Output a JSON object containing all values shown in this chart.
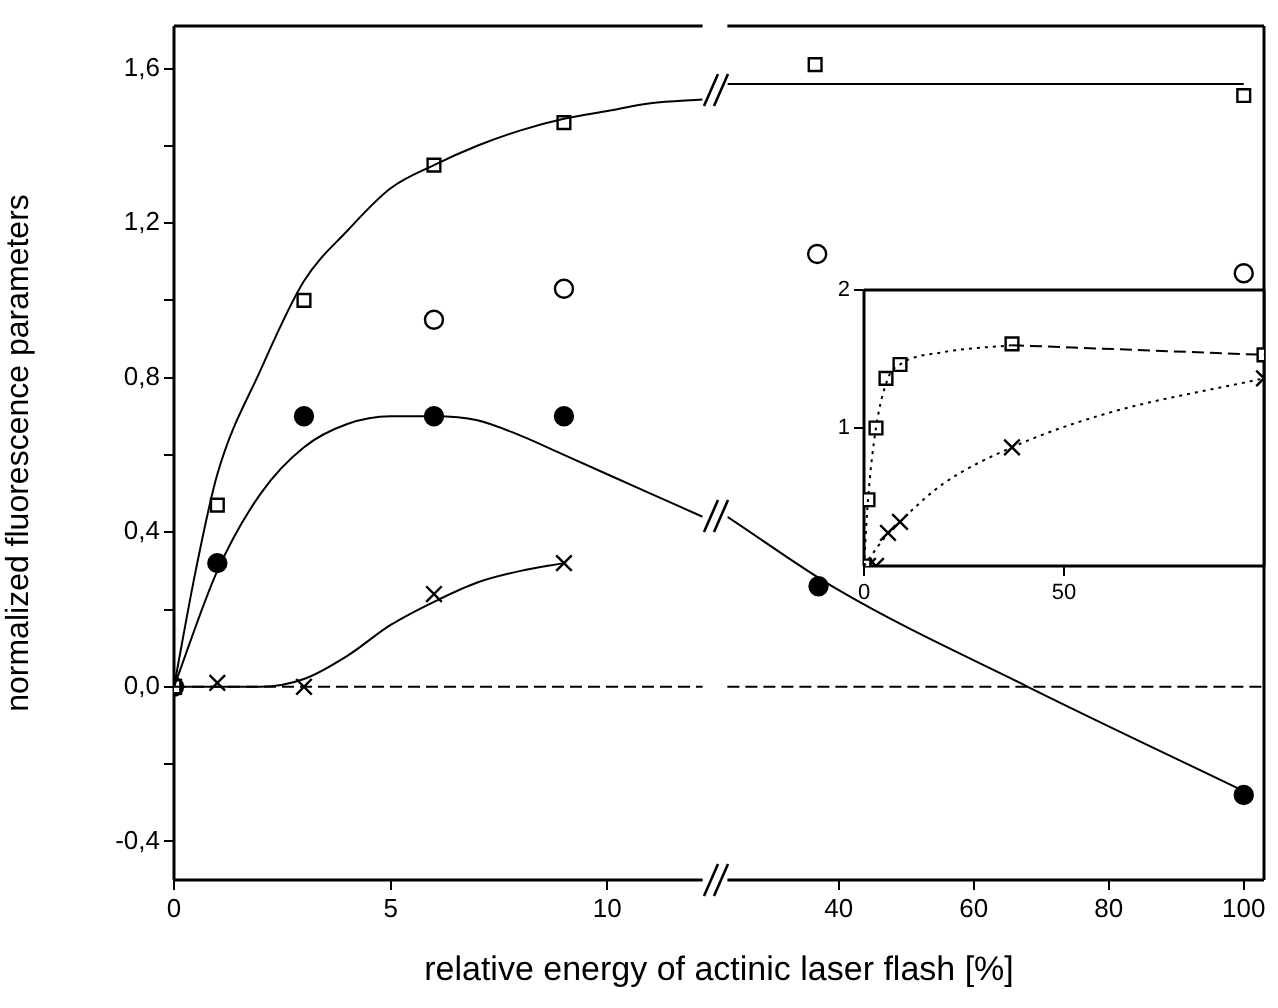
{
  "chart_data": [
    {
      "type": "scatter",
      "xlabel": "relative energy of actinic laser flash [%]",
      "ylabel": "normalized fluorescence parameters",
      "xlim": [
        0,
        12.2
      ],
      "ylim": [
        -0.5,
        1.71
      ],
      "xticks": [
        0,
        5,
        10
      ],
      "yticks": [
        {
          "value": -0.4,
          "label": "-0,4"
        },
        {
          "value": -0.2,
          "label": null
        },
        {
          "value": 0,
          "label": "0,0"
        },
        {
          "value": 0.2,
          "label": null
        },
        {
          "value": 0.4,
          "label": "0,4"
        },
        {
          "value": 0.6,
          "label": null
        },
        {
          "value": 0.8,
          "label": "0,8"
        },
        {
          "value": 1.0,
          "label": null
        },
        {
          "value": 1.2,
          "label": "1,2"
        },
        {
          "value": 1.4,
          "label": null
        },
        {
          "value": 1.6,
          "label": "1,6"
        }
      ],
      "grid": false,
      "ref_lines": [
        {
          "axis": "y",
          "value": 0,
          "line_style": "dashed"
        }
      ],
      "series": [
        {
          "type": "line",
          "color": "#000000",
          "marker": "none",
          "x": [
            0,
            0.5,
            1,
            2,
            3,
            4,
            5,
            6,
            7,
            8,
            9,
            10,
            11,
            12.2
          ],
          "values": [
            0,
            0.3,
            0.55,
            0.82,
            1.05,
            1.18,
            1.29,
            1.35,
            1.4,
            1.44,
            1.47,
            1.49,
            1.51,
            1.52
          ]
        },
        {
          "type": "line",
          "color": "#000000",
          "marker": "none",
          "x": [
            0,
            1,
            2,
            3,
            4,
            5,
            6,
            7,
            8,
            9,
            10,
            11,
            12.2
          ],
          "values": [
            0,
            0.3,
            0.5,
            0.62,
            0.68,
            0.7,
            0.7,
            0.69,
            0.65,
            0.6,
            0.55,
            0.5,
            0.44
          ]
        },
        {
          "type": "line",
          "color": "#000000",
          "marker": "none",
          "x": [
            0,
            1,
            2,
            3,
            4,
            5,
            6,
            7,
            8,
            9
          ],
          "values": [
            0,
            0,
            0,
            0.02,
            0.08,
            0.16,
            0.22,
            0.27,
            0.3,
            0.32
          ]
        },
        {
          "color": "#ffffff",
          "marker": "square",
          "x": [
            0,
            1,
            3,
            6,
            9
          ],
          "values": [
            0,
            0.47,
            1.0,
            1.35,
            1.46
          ]
        },
        {
          "color": "#ffffff",
          "marker": "circle",
          "x": [
            6,
            9
          ],
          "values": [
            0.95,
            1.03
          ]
        },
        {
          "color": "#000000",
          "marker": "circle",
          "x": [
            0,
            1,
            3,
            6,
            9
          ],
          "values": [
            0,
            0.32,
            0.7,
            0.7,
            0.7
          ]
        },
        {
          "color": "#000000",
          "marker": "cross",
          "x": [
            0,
            1,
            3,
            6,
            9
          ],
          "values": [
            0,
            0.01,
            0,
            0.24,
            0.32
          ]
        }
      ]
    },
    {
      "type": "scatter",
      "tick_labels": "x",
      "xlim": [
        23.5,
        103
      ],
      "ylim": [
        -0.5,
        1.71
      ],
      "xticks": [
        40,
        60,
        80,
        100
      ],
      "grid": false,
      "ref_lines": [
        {
          "axis": "y",
          "value": 0,
          "line_style": "dashed"
        }
      ],
      "series": [
        {
          "type": "line",
          "color": "#000000",
          "marker": "none",
          "x": [
            23.5,
            100
          ],
          "values": [
            1.56,
            1.56
          ]
        },
        {
          "type": "line",
          "color": "#000000",
          "marker": "none",
          "x": [
            23.5,
            40,
            68,
            100
          ],
          "values": [
            0.44,
            0.25,
            0,
            -0.27
          ]
        },
        {
          "color": "#ffffff",
          "marker": "square",
          "x": [
            36.5,
            100
          ],
          "values": [
            1.61,
            1.53
          ]
        },
        {
          "color": "#ffffff",
          "marker": "circle",
          "x": [
            36.8,
            100
          ],
          "values": [
            1.12,
            1.07
          ]
        },
        {
          "color": "#000000",
          "marker": "circle",
          "x": [
            37,
            100
          ],
          "values": [
            0.26,
            -0.28
          ]
        }
      ]
    },
    {
      "type": "scatter",
      "xlim": [
        0,
        100
      ],
      "ylim": [
        0,
        2
      ],
      "xticks": [
        0,
        50
      ],
      "yticks": [
        1,
        2
      ],
      "grid": false,
      "series": [
        {
          "type": "line",
          "color": "#000000",
          "marker": "none",
          "line_style": "dotted",
          "x": [
            0,
            1,
            3,
            6,
            9,
            20,
            37
          ],
          "values": [
            0,
            0.48,
            1.0,
            1.36,
            1.46,
            1.55,
            1.6
          ]
        },
        {
          "type": "line",
          "color": "#000000",
          "marker": "none",
          "line_style": "dashed",
          "x": [
            37,
            100
          ],
          "values": [
            1.6,
            1.53
          ]
        },
        {
          "type": "line",
          "color": "#000000",
          "marker": "none",
          "line_style": "dotted",
          "x": [
            0,
            5,
            10,
            20,
            37,
            60,
            100
          ],
          "values": [
            0,
            0.2,
            0.35,
            0.6,
            0.86,
            1.1,
            1.36
          ]
        },
        {
          "color": "#ffffff",
          "marker": "square",
          "x": [
            0,
            1,
            3,
            5.5,
            9,
            37,
            100
          ],
          "values": [
            0,
            0.48,
            1.0,
            1.36,
            1.46,
            1.61,
            1.53
          ]
        },
        {
          "color": "#000000",
          "marker": "cross",
          "x": [
            0,
            1,
            3,
            6,
            9,
            37,
            100
          ],
          "values": [
            0,
            0,
            0,
            0.24,
            0.32,
            0.86,
            1.36
          ]
        }
      ]
    }
  ]
}
